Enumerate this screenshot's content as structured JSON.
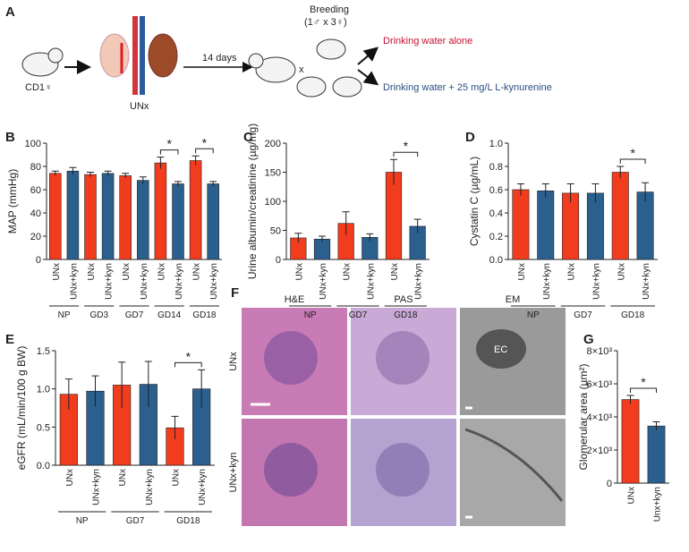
{
  "panel_labels": [
    "A",
    "B",
    "C",
    "D",
    "E",
    "F",
    "G"
  ],
  "schematic": {
    "mouse_label": "CD1♀",
    "surgery_label": "UNx",
    "interval": "14 days",
    "breeding_title": "Breeding",
    "breeding_detail": "(1♂ x 3♀)",
    "cross": "x",
    "arm_1": "Drinking water alone",
    "arm_2": "Drinking water + 25 mg/L L-kynurenine"
  },
  "histology": {
    "columns": [
      "H&E",
      "PAS",
      "EM"
    ],
    "rows": [
      "UNx",
      "UNx+kyn"
    ],
    "em_annotation": "EC"
  },
  "chart_data": [
    {
      "type": "bar",
      "y_label": "MAP (mmHg)",
      "categories": [
        "UNx",
        "UNx+kyn",
        "UNx",
        "UNx+kyn",
        "UNx",
        "UNx+kyn",
        "UNx",
        "UNx+kyn",
        "UNx",
        "UNx+kyn"
      ],
      "values": [
        74,
        76,
        73,
        74,
        72,
        68,
        83,
        65,
        85,
        65
      ],
      "errors": [
        2,
        3,
        2,
        2,
        2,
        3,
        5,
        2,
        4,
        2
      ],
      "colors": [
        "#f23c1e",
        "#2b5f8e",
        "#f23c1e",
        "#2b5f8e",
        "#f23c1e",
        "#2b5f8e",
        "#f23c1e",
        "#2b5f8e",
        "#f23c1e",
        "#2b5f8e"
      ],
      "groups": [
        "NP",
        "GD3",
        "GD7",
        "GD14",
        "GD18"
      ],
      "group_marks": [
        null,
        null,
        null,
        "*",
        "*"
      ],
      "ylim": [
        0,
        100
      ],
      "yticks": [
        0,
        20,
        40,
        60,
        80,
        100
      ]
    },
    {
      "type": "bar",
      "y_label": "Urine albumin/creatinine (µg/mg)",
      "categories": [
        "UNx",
        "UNx+kyn",
        "UNx",
        "UNx+kyn",
        "UNx",
        "UNx+kyn"
      ],
      "values": [
        37,
        35,
        62,
        38,
        150,
        57
      ],
      "errors": [
        8,
        5,
        20,
        6,
        22,
        12
      ],
      "colors": [
        "#f23c1e",
        "#2b5f8e",
        "#f23c1e",
        "#2b5f8e",
        "#f23c1e",
        "#2b5f8e"
      ],
      "groups": [
        "NP",
        "GD7",
        "GD18"
      ],
      "group_marks": [
        null,
        null,
        "*"
      ],
      "ylim": [
        0,
        200
      ],
      "yticks": [
        0,
        50,
        100,
        150,
        200
      ]
    },
    {
      "type": "bar",
      "y_label": "Cystatin C (µg/mL)",
      "categories": [
        "UNx",
        "UNx+kyn",
        "UNx",
        "UNx+kyn",
        "UNx",
        "UNx+kyn"
      ],
      "values": [
        0.6,
        0.59,
        0.57,
        0.57,
        0.75,
        0.58
      ],
      "errors": [
        0.05,
        0.06,
        0.08,
        0.08,
        0.05,
        0.08
      ],
      "colors": [
        "#f23c1e",
        "#2b5f8e",
        "#f23c1e",
        "#2b5f8e",
        "#f23c1e",
        "#2b5f8e"
      ],
      "groups": [
        "NP",
        "GD7",
        "GD18"
      ],
      "group_marks": [
        null,
        null,
        "*"
      ],
      "ylim": [
        0,
        1
      ],
      "yticks": [
        {
          "value": 0,
          "label": "0.0"
        },
        0.2,
        0.4,
        0.6,
        0.8,
        {
          "value": 1,
          "label": "1.0"
        }
      ]
    },
    {
      "type": "bar",
      "y_label": "eGFR (mL/min/100 g BW)",
      "categories": [
        "UNx",
        "UNx+kyn",
        "UNx",
        "UNx+kyn",
        "UNx",
        "UNx+kyn"
      ],
      "values": [
        0.93,
        0.97,
        1.05,
        1.06,
        0.49,
        1.0
      ],
      "errors": [
        0.2,
        0.2,
        0.3,
        0.3,
        0.15,
        0.25
      ],
      "colors": [
        "#f23c1e",
        "#2b5f8e",
        "#f23c1e",
        "#2b5f8e",
        "#f23c1e",
        "#2b5f8e"
      ],
      "groups": [
        "NP",
        "GD7",
        "GD18"
      ],
      "group_marks": [
        null,
        null,
        "*"
      ],
      "ylim": [
        0,
        1.5
      ],
      "yticks": [
        {
          "value": 0,
          "label": "0.0"
        },
        0.5,
        {
          "value": 1,
          "label": "1.0"
        },
        1.5
      ]
    },
    {
      "type": "bar",
      "y_label": "Glomerular area (µm²)",
      "categories": [
        "UNx",
        "Unx+kyn"
      ],
      "values": [
        5050,
        3450
      ],
      "errors": [
        250,
        250
      ],
      "colors": [
        "#f23c1e",
        "#2b5f8e"
      ],
      "significance": "*",
      "ylim": [
        0,
        8000
      ],
      "yticks": [
        0,
        {
          "value": 2000,
          "label": "2×10³"
        },
        {
          "value": 4000,
          "label": "4×10³"
        },
        {
          "value": 6000,
          "label": "6×10³"
        },
        {
          "value": 8000,
          "label": "8×10³"
        }
      ]
    }
  ]
}
